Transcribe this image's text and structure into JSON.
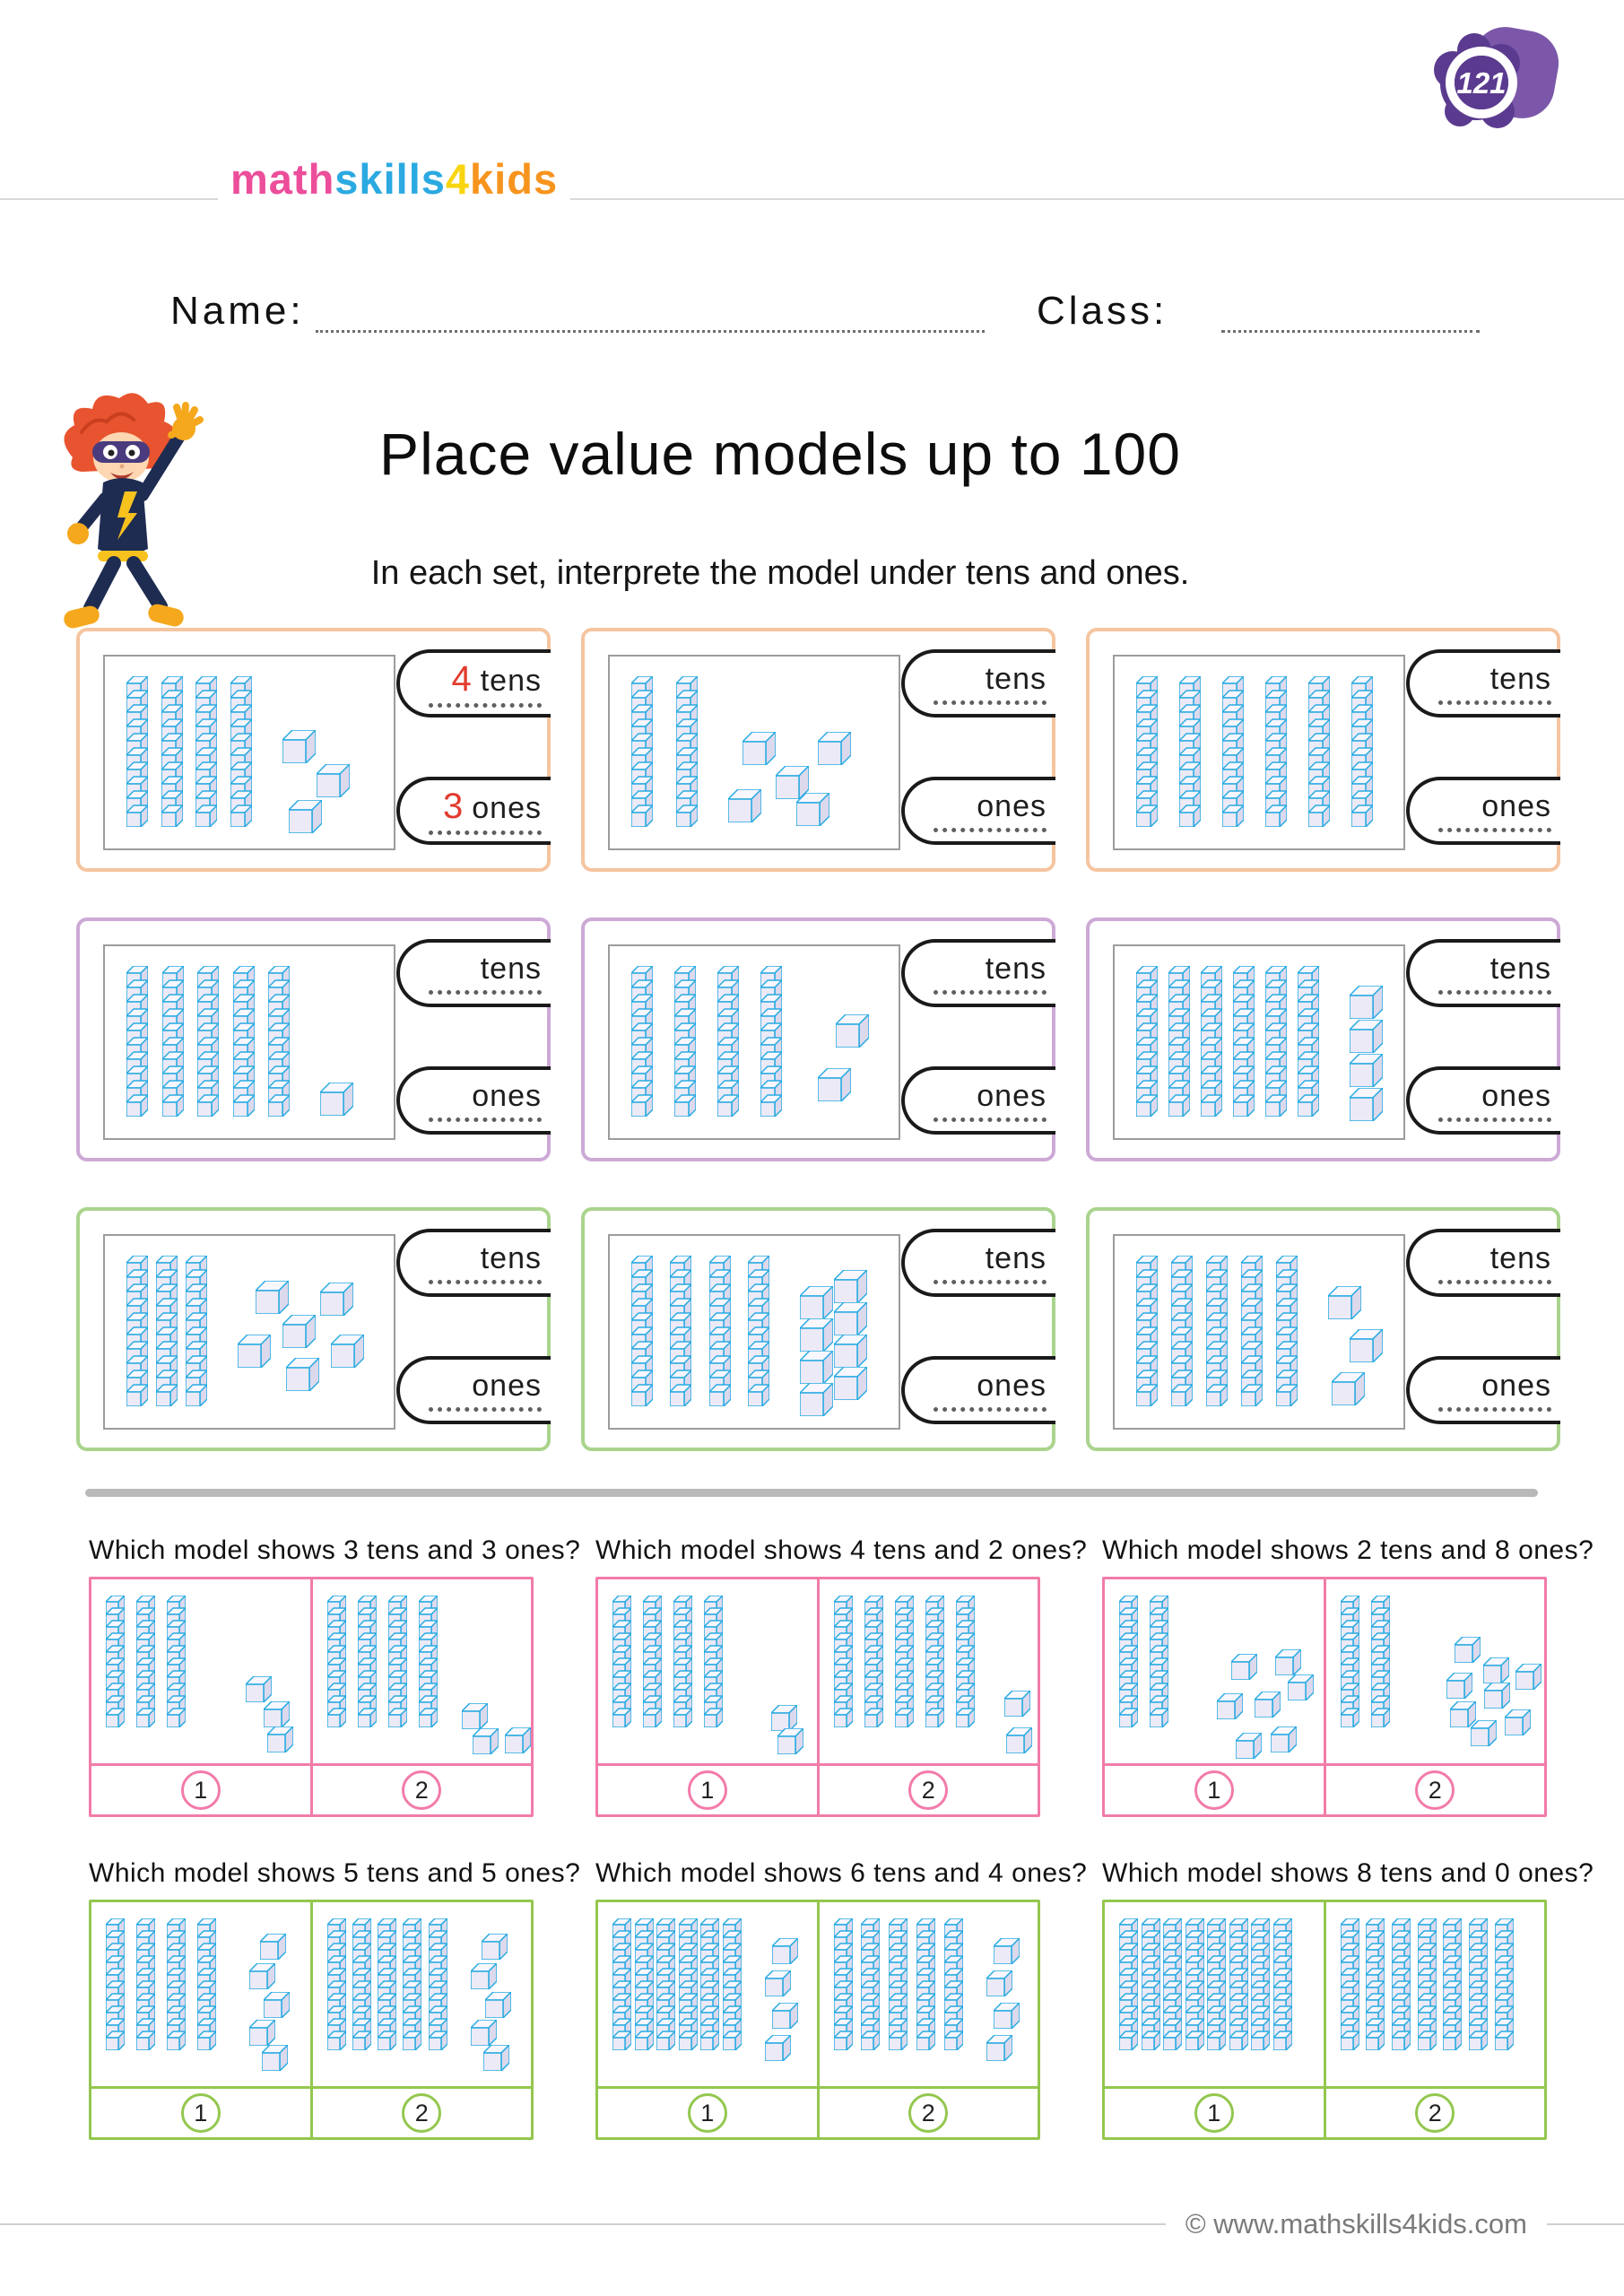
{
  "header": {
    "logo": {
      "segments": [
        {
          "text": "math",
          "color": "#EC4E9B"
        },
        {
          "text": "skills",
          "color": "#2BA9E1"
        },
        {
          "text": "4",
          "color": "#F8D50F"
        },
        {
          "text": "kids",
          "color": "#F7941E"
        }
      ]
    },
    "badge": {
      "number": "121",
      "front_color": "#5B3B8F",
      "back_color": "#7C57A9",
      "ring_color": "#FFFFFF"
    }
  },
  "fields": {
    "name_label": "Name:",
    "class_label": "Class:"
  },
  "title": "Place value models up to 100",
  "instruction": "In each set, interprete the model under tens and ones.",
  "exercise_boxes": [
    {
      "theme": "orange",
      "tens": 4,
      "ones": 3,
      "pattern": "diagonal3",
      "tens_label": "tens",
      "ones_label": "ones",
      "answers": {
        "tens": "4",
        "ones": "3"
      }
    },
    {
      "theme": "orange",
      "tens": 2,
      "ones": 5,
      "pattern": "scatter5",
      "tens_label": "tens",
      "ones_label": "ones",
      "answers": {
        "tens": "",
        "ones": ""
      }
    },
    {
      "theme": "orange",
      "tens": 6,
      "ones": 0,
      "pattern": "none",
      "tens_label": "tens",
      "ones_label": "ones",
      "answers": {
        "tens": "",
        "ones": ""
      }
    },
    {
      "theme": "purple",
      "tens": 5,
      "ones": 1,
      "pattern": "single1",
      "tens_label": "tens",
      "ones_label": "ones",
      "answers": {
        "tens": "",
        "ones": ""
      }
    },
    {
      "theme": "purple",
      "tens": 4,
      "ones": 2,
      "pattern": "pair2",
      "tens_label": "tens",
      "ones_label": "ones",
      "answers": {
        "tens": "",
        "ones": ""
      }
    },
    {
      "theme": "purple",
      "tens": 6,
      "ones": 4,
      "pattern": "column4",
      "tens_label": "tens",
      "ones_label": "ones",
      "answers": {
        "tens": "",
        "ones": ""
      }
    },
    {
      "theme": "green",
      "tens": 3,
      "ones": 6,
      "pattern": "scatter6",
      "tens_label": "tens",
      "ones_label": "ones",
      "answers": {
        "tens": "",
        "ones": ""
      }
    },
    {
      "theme": "green",
      "tens": 4,
      "ones": 8,
      "pattern": "twocol8",
      "tens_label": "tens",
      "ones_label": "ones",
      "answers": {
        "tens": "",
        "ones": ""
      }
    },
    {
      "theme": "green",
      "tens": 5,
      "ones": 3,
      "pattern": "diag3b",
      "tens_label": "tens",
      "ones_label": "ones",
      "answers": {
        "tens": "",
        "ones": ""
      }
    }
  ],
  "questions": [
    {
      "theme": "pink",
      "prompt": "Which model shows 3 tens and 3 ones?",
      "options": [
        "1",
        "2"
      ],
      "models": [
        {
          "tens": 3,
          "ones": 3,
          "pattern": "q_diag3"
        },
        {
          "tens": 4,
          "ones": 3,
          "pattern": "q_tri3"
        }
      ]
    },
    {
      "theme": "pink",
      "prompt": "Which model shows 4 tens and 2 ones?",
      "options": [
        "1",
        "2"
      ],
      "models": [
        {
          "tens": 4,
          "ones": 2,
          "pattern": "q_pair2a"
        },
        {
          "tens": 5,
          "ones": 2,
          "pattern": "q_pair2b"
        }
      ]
    },
    {
      "theme": "pink",
      "prompt": "Which model shows 2 tens and 8 ones?",
      "options": [
        "1",
        "2"
      ],
      "models": [
        {
          "tens": 2,
          "ones": 7,
          "pattern": "q_scatter7"
        },
        {
          "tens": 2,
          "ones": 8,
          "pattern": "q_scatter8"
        }
      ]
    },
    {
      "theme": "qgreen",
      "prompt": "Which model shows 5 tens and 5 ones?",
      "options": [
        "1",
        "2"
      ],
      "models": [
        {
          "tens": 4,
          "ones": 5,
          "pattern": "q_zigzag5"
        },
        {
          "tens": 5,
          "ones": 5,
          "pattern": "q_zigzag5"
        }
      ]
    },
    {
      "theme": "qgreen",
      "prompt": "Which model shows 6 tens and 4 ones?",
      "options": [
        "1",
        "2"
      ],
      "models": [
        {
          "tens": 6,
          "ones": 4,
          "pattern": "q_col4"
        },
        {
          "tens": 5,
          "ones": 4,
          "pattern": "q_col4"
        }
      ]
    },
    {
      "theme": "qgreen",
      "prompt": "Which model shows 8 tens and 0 ones?",
      "options": [
        "1",
        "2"
      ],
      "models": [
        {
          "tens": 8,
          "ones": 0,
          "pattern": "q_none"
        },
        {
          "tens": 7,
          "ones": 0,
          "pattern": "q_none"
        }
      ]
    }
  ],
  "footer": {
    "text": "© www.mathskills4kids.com"
  },
  "colors": {
    "rod_outline": "#29ABE2",
    "rod_face": "#ECEAF6",
    "rod_top": "#F8F7FD",
    "rod_side": "#DCD9ED",
    "answer_red": "#E23B2E",
    "divider": "#B9B9B9",
    "theme_orange": "#F5C5A0",
    "theme_purple": "#CDA9D6",
    "theme_green": "#AAD48D",
    "theme_pink": "#F27BA9",
    "theme_qgreen": "#93C74F"
  }
}
